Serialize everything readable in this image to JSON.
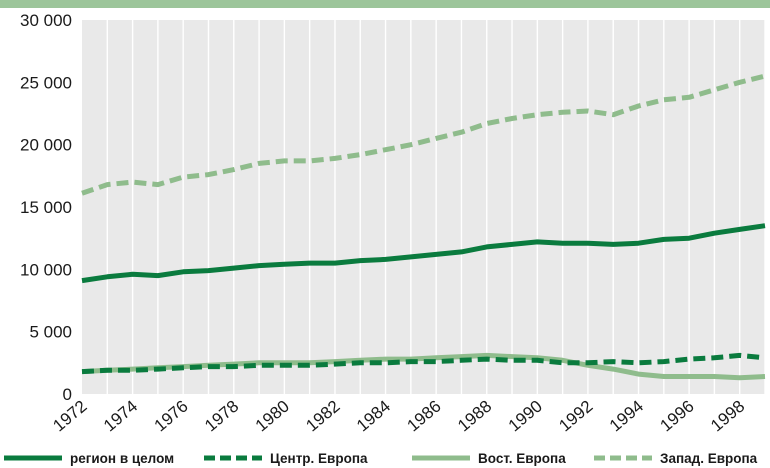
{
  "chart_data": {
    "type": "line",
    "title": "",
    "xlabel": "",
    "ylabel": "",
    "ylim": [
      0,
      30000
    ],
    "xlim": [
      1972,
      1999
    ],
    "grid": "vertical lines at every year",
    "legend_position": "bottom",
    "y_ticks": [
      {
        "value": 0,
        "label": "0"
      },
      {
        "value": 5000,
        "label": "5 000"
      },
      {
        "value": 10000,
        "label": "10 000"
      },
      {
        "value": 15000,
        "label": "15 000"
      },
      {
        "value": 20000,
        "label": "20 000"
      },
      {
        "value": 25000,
        "label": "25 000"
      },
      {
        "value": 30000,
        "label": "30 000"
      }
    ],
    "x_ticks": [
      "1972",
      "1974",
      "1976",
      "1978",
      "1980",
      "1982",
      "1984",
      "1986",
      "1988",
      "1990",
      "1992",
      "1994",
      "1996",
      "1998"
    ],
    "x": [
      1972,
      1973,
      1974,
      1975,
      1976,
      1977,
      1978,
      1979,
      1980,
      1981,
      1982,
      1983,
      1984,
      1985,
      1986,
      1987,
      1988,
      1989,
      1990,
      1991,
      1992,
      1993,
      1994,
      1995,
      1996,
      1997,
      1998,
      1999
    ],
    "series": [
      {
        "name": "регион в целом",
        "color": "#0a7b3e",
        "style": "solid",
        "values": [
          9100,
          9400,
          9600,
          9500,
          9800,
          9900,
          10100,
          10300,
          10400,
          10500,
          10500,
          10700,
          10800,
          11000,
          11200,
          11400,
          11800,
          12000,
          12200,
          12100,
          12100,
          12000,
          12100,
          12400,
          12500,
          12900,
          13200,
          13500
        ]
      },
      {
        "name": "Центр. Европа",
        "color": "#0a7b3e",
        "style": "dashed",
        "values": [
          1800,
          1900,
          1900,
          2000,
          2100,
          2200,
          2200,
          2300,
          2300,
          2300,
          2400,
          2500,
          2500,
          2600,
          2600,
          2700,
          2800,
          2700,
          2700,
          2500,
          2500,
          2600,
          2500,
          2600,
          2800,
          2900,
          3100,
          2900
        ]
      },
      {
        "name": "Вост. Европа",
        "color": "#8fbc8c",
        "style": "solid",
        "values": [
          1800,
          1900,
          2000,
          2100,
          2200,
          2300,
          2400,
          2500,
          2500,
          2500,
          2600,
          2700,
          2800,
          2800,
          2900,
          3000,
          3100,
          3000,
          2900,
          2700,
          2300,
          2000,
          1600,
          1400,
          1400,
          1400,
          1300,
          1400
        ]
      },
      {
        "name": "Запад. Европа",
        "color": "#8fbc8c",
        "style": "dashed",
        "values": [
          16100,
          16800,
          17000,
          16800,
          17400,
          17600,
          18000,
          18500,
          18700,
          18700,
          18900,
          19200,
          19600,
          20000,
          20500,
          21000,
          21700,
          22100,
          22400,
          22600,
          22700,
          22400,
          23100,
          23600,
          23800,
          24400,
          25000,
          25500
        ]
      }
    ]
  }
}
